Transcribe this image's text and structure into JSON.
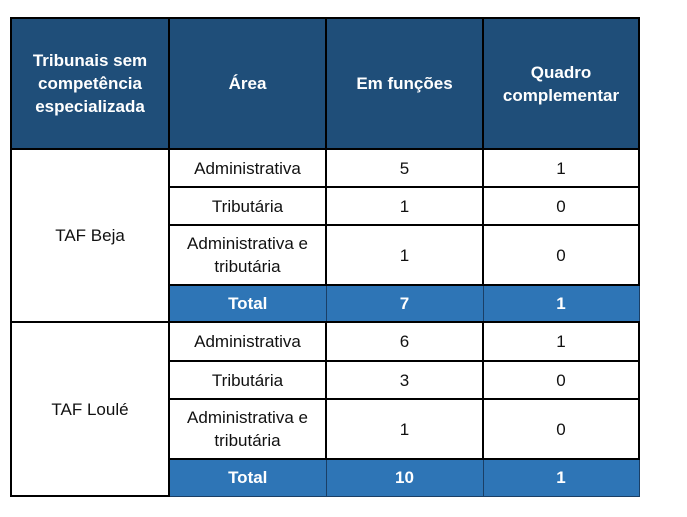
{
  "headers": {
    "court": "Tribunais sem competência especializada",
    "area": "Área",
    "in_office": "Em funções",
    "supplementary": "Quadro complementar"
  },
  "groups": [
    {
      "court": "TAF Beja",
      "rows": [
        {
          "area": "Administrativa",
          "in_office": "5",
          "supplementary": "1"
        },
        {
          "area": "Tributária",
          "in_office": "1",
          "supplementary": "0"
        },
        {
          "area": "Administrativa e tributária",
          "in_office": "1",
          "supplementary": "0"
        }
      ],
      "total": {
        "label": "Total",
        "in_office": "7",
        "supplementary": "1"
      }
    },
    {
      "court": "TAF Loulé",
      "rows": [
        {
          "area": "Administrativa",
          "in_office": "6",
          "supplementary": "1"
        },
        {
          "area": "Tributária",
          "in_office": "3",
          "supplementary": "0"
        },
        {
          "area": "Administrativa e tributária",
          "in_office": "1",
          "supplementary": "0"
        }
      ],
      "total": {
        "label": "Total",
        "in_office": "10",
        "supplementary": "1"
      }
    }
  ],
  "colors": {
    "header_bg": "#1F4E79",
    "total_bg": "#2E75B6"
  }
}
